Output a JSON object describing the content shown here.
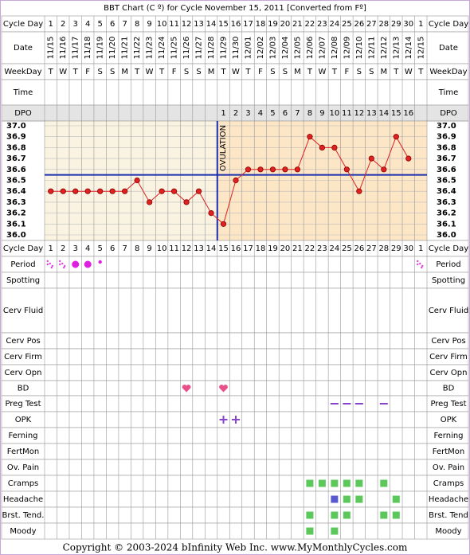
{
  "chart_data": {
    "type": "line",
    "title": "BBT Chart (C º) for Cycle November 15, 2011  [Converted from Fº]",
    "top_rows": [
      "Cycle Day",
      "Date",
      "WeekDay",
      "Time",
      "DPO"
    ],
    "cycle_days": [
      1,
      2,
      3,
      4,
      5,
      6,
      7,
      8,
      9,
      10,
      11,
      12,
      13,
      14,
      15,
      16,
      17,
      18,
      19,
      20,
      21,
      22,
      23,
      24,
      25,
      26,
      27,
      28,
      29,
      30,
      1
    ],
    "dates": [
      "11/15",
      "11/16",
      "11/17",
      "11/18",
      "11/19",
      "11/20",
      "11/21",
      "11/22",
      "11/23",
      "11/24",
      "11/25",
      "11/26",
      "11/27",
      "11/28",
      "11/29",
      "11/30",
      "12/01",
      "12/02",
      "12/03",
      "12/04",
      "12/05",
      "12/06",
      "12/07",
      "12/08",
      "12/09",
      "12/10",
      "12/11",
      "12/12",
      "12/13",
      "12/14",
      "12/15"
    ],
    "weekdays": [
      "T",
      "W",
      "T",
      "F",
      "S",
      "S",
      "M",
      "T",
      "W",
      "T",
      "F",
      "S",
      "S",
      "M",
      "T",
      "W",
      "T",
      "F",
      "S",
      "S",
      "M",
      "T",
      "W",
      "T",
      "F",
      "S",
      "S",
      "M",
      "T",
      "W",
      "T"
    ],
    "dpo": [
      null,
      null,
      null,
      null,
      null,
      null,
      null,
      null,
      null,
      null,
      null,
      null,
      null,
      null,
      1,
      2,
      3,
      4,
      5,
      6,
      7,
      8,
      9,
      10,
      11,
      12,
      13,
      14,
      15,
      16,
      null
    ],
    "series": [
      {
        "name": "BBT",
        "color": "#dd2222",
        "values": [
          36.4,
          36.4,
          36.4,
          36.4,
          36.4,
          36.4,
          36.4,
          36.5,
          36.3,
          36.4,
          36.4,
          36.3,
          36.4,
          36.2,
          36.1,
          36.5,
          36.6,
          36.6,
          36.6,
          36.6,
          36.6,
          36.9,
          36.8,
          36.8,
          36.6,
          36.4,
          36.7,
          36.6,
          36.9,
          36.7,
          null
        ]
      }
    ],
    "ylim": [
      36.0,
      37.0
    ],
    "yticks": [
      {
        "value": 37,
        "label": "37.0"
      },
      36.9,
      36.8,
      36.7,
      36.6,
      36.5,
      36.4,
      36.3,
      36.2,
      36.1,
      {
        "value": 36,
        "label": "36.0"
      }
    ],
    "coverline": 36.55,
    "ovulation_day": 14,
    "ovulation_label": "OVULATION",
    "lower_rows": [
      {
        "left": "Cycle Day",
        "right": "Cycle Day"
      },
      {
        "left": "Period",
        "right": "Period",
        "marks": [
          {
            "day": 1,
            "symbol": "dots"
          },
          {
            "day": 2,
            "symbol": "dots"
          },
          {
            "day": 3,
            "symbol": "big"
          },
          {
            "day": 4,
            "symbol": "big"
          },
          {
            "day": 5,
            "symbol": "small"
          },
          {
            "day": 31,
            "symbol": "dots"
          }
        ]
      },
      {
        "left": "Spotting",
        "right": "Spotting"
      },
      {
        "left": "Cerv Fluid",
        "right": "Cerv Fluid"
      },
      {
        "left": "Cerv Pos",
        "right": "Cerv Pos"
      },
      {
        "left": "Cerv Firm",
        "right": "Cerv Firm"
      },
      {
        "left": "Cerv Opn",
        "right": "Cerv Opn"
      },
      {
        "left": "BD",
        "right": "BD",
        "marks": [
          {
            "day": 12,
            "symbol": "heart"
          },
          {
            "day": 15,
            "symbol": "heart"
          }
        ]
      },
      {
        "left": "Preg Test",
        "right": "Preg Test",
        "marks": [
          {
            "day": 24,
            "symbol": "dash"
          },
          {
            "day": 25,
            "symbol": "dash"
          },
          {
            "day": 26,
            "symbol": "dash"
          },
          {
            "day": 28,
            "symbol": "dash"
          }
        ]
      },
      {
        "left": "OPK",
        "right": "OPK",
        "marks": [
          {
            "day": 15,
            "symbol": "plus"
          },
          {
            "day": 16,
            "symbol": "plus"
          }
        ]
      },
      {
        "left": "Ferning",
        "right": "Ferning"
      },
      {
        "left": "FertMon",
        "right": "FertMon"
      },
      {
        "left": "Ov. Pain",
        "right": "Ov. Pain"
      },
      {
        "left": "Cramps",
        "right": "Cramps",
        "marks": [
          {
            "day": 22,
            "symbol": "green"
          },
          {
            "day": 23,
            "symbol": "green"
          },
          {
            "day": 24,
            "symbol": "green"
          },
          {
            "day": 25,
            "symbol": "green"
          },
          {
            "day": 26,
            "symbol": "green"
          },
          {
            "day": 28,
            "symbol": "green"
          }
        ]
      },
      {
        "left": "Headache",
        "right": "Headache",
        "marks": [
          {
            "day": 24,
            "symbol": "blue"
          },
          {
            "day": 25,
            "symbol": "green"
          },
          {
            "day": 26,
            "symbol": "green"
          },
          {
            "day": 29,
            "symbol": "green"
          }
        ]
      },
      {
        "left": "Brst. Tend.",
        "right": "Brst. Tend",
        "marks": [
          {
            "day": 22,
            "symbol": "green"
          },
          {
            "day": 24,
            "symbol": "green"
          },
          {
            "day": 25,
            "symbol": "green"
          },
          {
            "day": 28,
            "symbol": "green"
          },
          {
            "day": 29,
            "symbol": "green"
          }
        ]
      },
      {
        "left": "Moody",
        "right": "Moody",
        "marks": [
          {
            "day": 22,
            "symbol": "green"
          },
          {
            "day": 24,
            "symbol": "green"
          }
        ]
      }
    ],
    "footer": "Copyright © 2003-2024 bInfinity Web Inc.     www.MyMonthlyCycles.com"
  }
}
